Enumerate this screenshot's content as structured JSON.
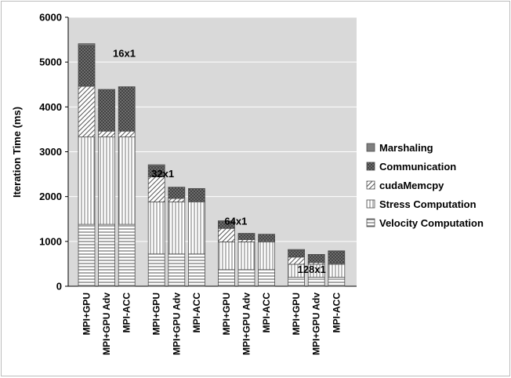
{
  "chart_data": {
    "type": "bar",
    "stacked": true,
    "ylabel": "Iteration Time (ms)",
    "ylim": [
      0,
      6000
    ],
    "yticks": [
      0,
      1000,
      2000,
      3000,
      4000,
      5000,
      6000
    ],
    "grid": true,
    "legend_position": "right",
    "groups": [
      {
        "label": "16x1",
        "categories": [
          "MPI+GPU",
          "MPI+GPU Adv",
          "MPI-ACC"
        ]
      },
      {
        "label": "32x1",
        "categories": [
          "MPI+GPU",
          "MPI+GPU Adv",
          "MPI-ACC"
        ]
      },
      {
        "label": "64x1",
        "categories": [
          "MPI+GPU",
          "MPI+GPU Adv",
          "MPI-ACC"
        ]
      },
      {
        "label": "128x1",
        "categories": [
          "MPI+GPU",
          "MPI+GPU Adv",
          "MPI-ACC"
        ]
      }
    ],
    "series": [
      {
        "name": "Velocity Computation",
        "pattern": "horizontal",
        "values": [
          1380,
          1380,
          1380,
          720,
          720,
          720,
          370,
          370,
          370,
          200,
          200,
          200
        ]
      },
      {
        "name": "Stress Computation",
        "pattern": "vertical",
        "values": [
          1950,
          1950,
          1950,
          1160,
          1160,
          1160,
          620,
          620,
          620,
          290,
          290,
          290
        ]
      },
      {
        "name": "cudaMemcpy",
        "pattern": "diagonal",
        "values": [
          1130,
          130,
          130,
          560,
          80,
          20,
          300,
          50,
          20,
          160,
          40,
          20
        ]
      },
      {
        "name": "Communication",
        "pattern": "crosshatch",
        "values": [
          910,
          930,
          990,
          240,
          250,
          280,
          150,
          140,
          150,
          150,
          180,
          280
        ]
      },
      {
        "name": "Marshaling",
        "pattern": "solid",
        "values": [
          40,
          0,
          0,
          30,
          0,
          0,
          20,
          0,
          0,
          20,
          0,
          0
        ]
      }
    ],
    "colors": {
      "plot_bg": "#d9d9d9",
      "bar_fill": "#ffffff",
      "stroke": "#4d4d4d",
      "grid": "#ffffff"
    }
  }
}
